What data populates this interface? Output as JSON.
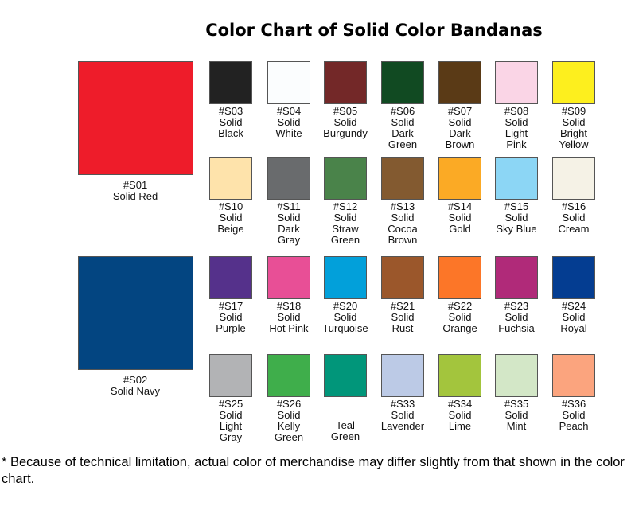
{
  "title": "Color Chart of Solid Color Bandanas",
  "large_swatches": [
    {
      "code": "#S01",
      "name": "Solid Red",
      "color": "#ee1c2a"
    },
    {
      "code": "#S02",
      "name": "Solid Navy",
      "color": "#034581"
    }
  ],
  "swatches": [
    {
      "code": "#S03",
      "lines": [
        "Solid",
        "Black"
      ],
      "color": "#222222"
    },
    {
      "code": "#S04",
      "lines": [
        "Solid",
        "White"
      ],
      "color": "#fbfdfe"
    },
    {
      "code": "#S05",
      "lines": [
        "Solid",
        "Burgundy"
      ],
      "color": "#732828"
    },
    {
      "code": "#S06",
      "lines": [
        "Solid",
        "Dark",
        "Green"
      ],
      "color": "#114a22"
    },
    {
      "code": "#S07",
      "lines": [
        "Solid",
        "Dark",
        "Brown"
      ],
      "color": "#5a3a16"
    },
    {
      "code": "#S08",
      "lines": [
        "Solid",
        "Light",
        "Pink"
      ],
      "color": "#fad5e6"
    },
    {
      "code": "#S09",
      "lines": [
        "Solid",
        "Bright",
        "Yellow"
      ],
      "color": "#fdef1e"
    },
    {
      "code": "#S10",
      "lines": [
        "Solid",
        "Beige"
      ],
      "color": "#fee3ab"
    },
    {
      "code": "#S11",
      "lines": [
        "Solid",
        "Dark",
        "Gray"
      ],
      "color": "#696b6d"
    },
    {
      "code": "#S12",
      "lines": [
        "Solid",
        "Straw",
        "Green"
      ],
      "color": "#4a834a"
    },
    {
      "code": "#S13",
      "lines": [
        "Solid",
        "Cocoa",
        "Brown"
      ],
      "color": "#835a30"
    },
    {
      "code": "#S14",
      "lines": [
        "Solid",
        "Gold"
      ],
      "color": "#fbaa25"
    },
    {
      "code": "#S15",
      "lines": [
        "Solid",
        "Sky Blue"
      ],
      "color": "#8cd6f5"
    },
    {
      "code": "#S16",
      "lines": [
        "Solid",
        "Cream"
      ],
      "color": "#f5f2e6"
    },
    {
      "code": "#S17",
      "lines": [
        "Solid",
        "Purple"
      ],
      "color": "#55318b"
    },
    {
      "code": "#S18",
      "lines": [
        "Solid",
        "Hot Pink"
      ],
      "color": "#e84f96"
    },
    {
      "code": "#S20",
      "lines": [
        "Solid",
        "Turquoise"
      ],
      "color": "#02a0da"
    },
    {
      "code": "#S21",
      "lines": [
        "Solid",
        "Rust"
      ],
      "color": "#9b572b"
    },
    {
      "code": "#S22",
      "lines": [
        "Solid",
        "Orange"
      ],
      "color": "#fc7628"
    },
    {
      "code": "#S23",
      "lines": [
        "Solid",
        "Fuchsia"
      ],
      "color": "#b02a79"
    },
    {
      "code": "#S24",
      "lines": [
        "Solid",
        "Royal"
      ],
      "color": "#043d91"
    },
    {
      "code": "#S25",
      "lines": [
        "Solid",
        "Light",
        "Gray"
      ],
      "color": "#b2b3b5"
    },
    {
      "code": "#S26",
      "lines": [
        "Solid",
        "Kelly",
        "Green"
      ],
      "color": "#3fae4b"
    },
    {
      "code": "",
      "lines": [
        "Teal",
        "Green"
      ],
      "color": "#01967a"
    },
    {
      "code": "#S33",
      "lines": [
        "Solid",
        "Lavender"
      ],
      "color": "#bccae6"
    },
    {
      "code": "#S34",
      "lines": [
        "Solid",
        "Lime"
      ],
      "color": "#a3c53d"
    },
    {
      "code": "#S35",
      "lines": [
        "Solid",
        "Mint"
      ],
      "color": "#d3e7c7"
    },
    {
      "code": "#S36",
      "lines": [
        "Solid",
        "Peach"
      ],
      "color": "#fba47e"
    }
  ],
  "footnote": "* Because of technical limitation, actual color of merchandise may differ slightly from that shown in the color chart."
}
